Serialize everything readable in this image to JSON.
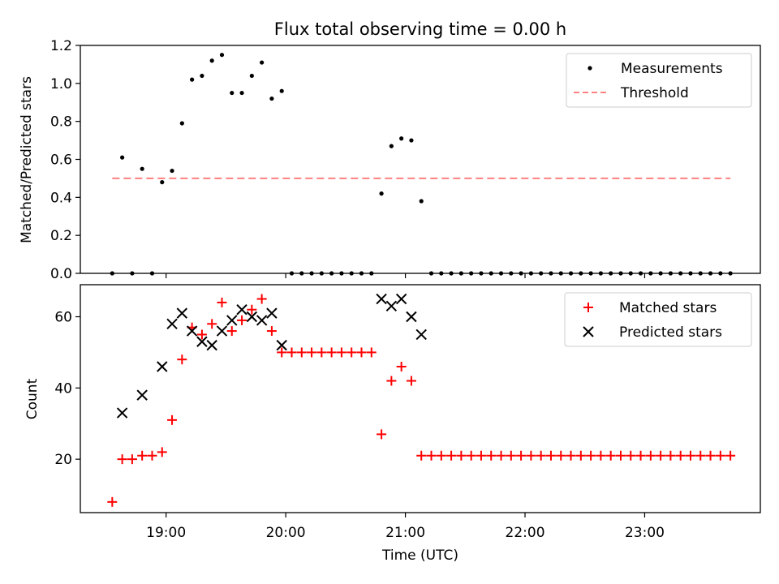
{
  "figure_title": "Flux total observing time = 0.00 h",
  "chart_data": [
    {
      "type": "scatter",
      "title": "Flux total observing time = 0.00 h",
      "xlabel": "",
      "ylabel": "Matched/Predicted stars",
      "ylim": [
        0.0,
        1.2
      ],
      "yticks": [
        0.0,
        0.2,
        0.4,
        0.6,
        0.8,
        1.0,
        1.2
      ],
      "ytick_labels": [
        "0.0",
        "0.2",
        "0.4",
        "0.6",
        "0.8",
        "1.0",
        "1.2"
      ],
      "x_tick_labels_shown": false,
      "legend_position": "upper right",
      "series": [
        {
          "name": "Measurements",
          "marker": "dot",
          "color": "#000000",
          "points": [
            [
              "18:33",
              0.0
            ],
            [
              "18:38",
              0.61
            ],
            [
              "18:43",
              0.0
            ],
            [
              "18:48",
              0.55
            ],
            [
              "18:53",
              0.0
            ],
            [
              "18:58",
              0.48
            ],
            [
              "19:03",
              0.54
            ],
            [
              "19:08",
              0.79
            ],
            [
              "19:13",
              1.02
            ],
            [
              "19:18",
              1.04
            ],
            [
              "19:23",
              1.12
            ],
            [
              "19:28",
              1.15
            ],
            [
              "19:33",
              0.95
            ],
            [
              "19:38",
              0.95
            ],
            [
              "19:43",
              1.04
            ],
            [
              "19:48",
              1.11
            ],
            [
              "19:53",
              0.92
            ],
            [
              "19:58",
              0.96
            ],
            [
              "20:03",
              0.0
            ],
            [
              "20:08",
              0.0
            ],
            [
              "20:13",
              0.0
            ],
            [
              "20:18",
              0.0
            ],
            [
              "20:23",
              0.0
            ],
            [
              "20:28",
              0.0
            ],
            [
              "20:33",
              0.0
            ],
            [
              "20:38",
              0.0
            ],
            [
              "20:43",
              0.0
            ],
            [
              "20:48",
              0.42
            ],
            [
              "20:53",
              0.67
            ],
            [
              "20:58",
              0.71
            ],
            [
              "21:03",
              0.7
            ],
            [
              "21:08",
              0.38
            ],
            [
              "21:13",
              0.0
            ],
            [
              "21:18",
              0.0
            ],
            [
              "21:23",
              0.0
            ],
            [
              "21:28",
              0.0
            ],
            [
              "21:33",
              0.0
            ],
            [
              "21:38",
              0.0
            ],
            [
              "21:43",
              0.0
            ],
            [
              "21:48",
              0.0
            ],
            [
              "21:53",
              0.0
            ],
            [
              "21:58",
              0.0
            ],
            [
              "22:03",
              0.0
            ],
            [
              "22:08",
              0.0
            ],
            [
              "22:13",
              0.0
            ],
            [
              "22:18",
              0.0
            ],
            [
              "22:23",
              0.0
            ],
            [
              "22:28",
              0.0
            ],
            [
              "22:33",
              0.0
            ],
            [
              "22:38",
              0.0
            ],
            [
              "22:43",
              0.0
            ],
            [
              "22:48",
              0.0
            ],
            [
              "22:53",
              0.0
            ],
            [
              "22:58",
              0.0
            ],
            [
              "23:03",
              0.0
            ],
            [
              "23:08",
              0.0
            ],
            [
              "23:13",
              0.0
            ],
            [
              "23:18",
              0.0
            ],
            [
              "23:23",
              0.0
            ],
            [
              "23:28",
              0.0
            ],
            [
              "23:33",
              0.0
            ],
            [
              "23:38",
              0.0
            ],
            [
              "23:43",
              0.0
            ]
          ]
        },
        {
          "name": "Threshold",
          "marker": "dashed-line",
          "color": "#ff8080",
          "points": [
            [
              "18:33",
              0.5
            ],
            [
              "23:43",
              0.5
            ]
          ]
        }
      ]
    },
    {
      "type": "scatter",
      "title": "",
      "xlabel": "Time (UTC)",
      "ylabel": "Count",
      "ylim": [
        5,
        69
      ],
      "yticks": [
        20,
        40,
        60
      ],
      "ytick_labels": [
        "20",
        "40",
        "60"
      ],
      "xticks": [
        "19:00",
        "20:00",
        "21:00",
        "22:00",
        "23:00"
      ],
      "xtick_labels": [
        "19:00",
        "20:00",
        "21:00",
        "22:00",
        "23:00"
      ],
      "xlim": [
        "18:17",
        "23:58"
      ],
      "legend_position": "upper right",
      "series": [
        {
          "name": "Matched stars",
          "marker": "plus",
          "color": "#ff0000",
          "points": [
            [
              "18:33",
              8
            ],
            [
              "18:38",
              20
            ],
            [
              "18:43",
              20
            ],
            [
              "18:48",
              21
            ],
            [
              "18:53",
              21
            ],
            [
              "18:58",
              22
            ],
            [
              "19:03",
              31
            ],
            [
              "19:08",
              48
            ],
            [
              "19:13",
              57
            ],
            [
              "19:18",
              55
            ],
            [
              "19:23",
              58
            ],
            [
              "19:28",
              64
            ],
            [
              "19:33",
              56
            ],
            [
              "19:38",
              59
            ],
            [
              "19:43",
              62
            ],
            [
              "19:48",
              65
            ],
            [
              "19:53",
              56
            ],
            [
              "19:58",
              50
            ],
            [
              "20:03",
              50
            ],
            [
              "20:08",
              50
            ],
            [
              "20:13",
              50
            ],
            [
              "20:18",
              50
            ],
            [
              "20:23",
              50
            ],
            [
              "20:28",
              50
            ],
            [
              "20:33",
              50
            ],
            [
              "20:38",
              50
            ],
            [
              "20:43",
              50
            ],
            [
              "20:48",
              27
            ],
            [
              "20:53",
              42
            ],
            [
              "20:58",
              46
            ],
            [
              "21:03",
              42
            ],
            [
              "21:08",
              21
            ],
            [
              "21:13",
              21
            ],
            [
              "21:18",
              21
            ],
            [
              "21:23",
              21
            ],
            [
              "21:28",
              21
            ],
            [
              "21:33",
              21
            ],
            [
              "21:38",
              21
            ],
            [
              "21:43",
              21
            ],
            [
              "21:48",
              21
            ],
            [
              "21:53",
              21
            ],
            [
              "21:58",
              21
            ],
            [
              "22:03",
              21
            ],
            [
              "22:08",
              21
            ],
            [
              "22:13",
              21
            ],
            [
              "22:18",
              21
            ],
            [
              "22:23",
              21
            ],
            [
              "22:28",
              21
            ],
            [
              "22:33",
              21
            ],
            [
              "22:38",
              21
            ],
            [
              "22:43",
              21
            ],
            [
              "22:48",
              21
            ],
            [
              "22:53",
              21
            ],
            [
              "22:58",
              21
            ],
            [
              "23:03",
              21
            ],
            [
              "23:08",
              21
            ],
            [
              "23:13",
              21
            ],
            [
              "23:18",
              21
            ],
            [
              "23:23",
              21
            ],
            [
              "23:28",
              21
            ],
            [
              "23:33",
              21
            ],
            [
              "23:38",
              21
            ],
            [
              "23:43",
              21
            ]
          ]
        },
        {
          "name": "Predicted stars",
          "marker": "x",
          "color": "#000000",
          "points": [
            [
              "18:38",
              33
            ],
            [
              "18:48",
              38
            ],
            [
              "18:58",
              46
            ],
            [
              "19:03",
              58
            ],
            [
              "19:08",
              61
            ],
            [
              "19:13",
              56
            ],
            [
              "19:18",
              53
            ],
            [
              "19:23",
              52
            ],
            [
              "19:28",
              56
            ],
            [
              "19:33",
              59
            ],
            [
              "19:38",
              62
            ],
            [
              "19:43",
              60
            ],
            [
              "19:48",
              59
            ],
            [
              "19:53",
              61
            ],
            [
              "19:58",
              52
            ],
            [
              "20:48",
              65
            ],
            [
              "20:53",
              63
            ],
            [
              "20:58",
              65
            ],
            [
              "21:03",
              60
            ],
            [
              "21:08",
              55
            ]
          ]
        }
      ]
    }
  ]
}
